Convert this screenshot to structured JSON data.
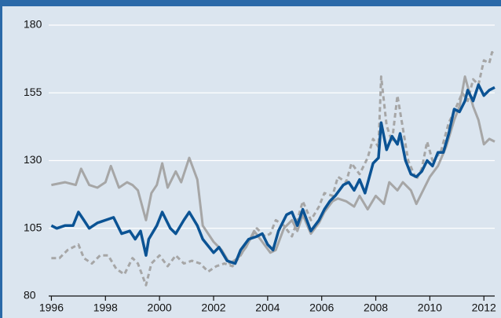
{
  "chart_data": {
    "type": "line",
    "xlim": [
      1995.9,
      2012.4
    ],
    "xticks": [
      1996,
      1998,
      2000,
      2002,
      2004,
      2006,
      2008,
      2010,
      2012
    ],
    "ylim": [
      80,
      180
    ],
    "yticks": [
      80,
      105,
      130,
      155,
      180
    ],
    "grid": true,
    "series": [
      {
        "color": "#a6a6a6",
        "dash": false,
        "x": [
          1996.0,
          1996.5,
          1996.9,
          1997.1,
          1997.4,
          1997.7,
          1998.0,
          1998.2,
          1998.5,
          1998.8,
          1999.0,
          1999.2,
          1999.5,
          1999.7,
          1999.9,
          2000.1,
          2000.3,
          2000.6,
          2000.8,
          2001.1,
          2001.4,
          2001.6,
          2002.0,
          2002.3,
          2002.6,
          2002.9,
          2003.2,
          2003.5,
          2003.8,
          2004.1,
          2004.3,
          2004.6,
          2004.9,
          2005.1,
          2005.3,
          2005.6,
          2005.9,
          2006.1,
          2006.4,
          2006.6,
          2006.9,
          2007.2,
          2007.4,
          2007.7,
          2008.0,
          2008.3,
          2008.5,
          2008.8,
          2009.0,
          2009.3,
          2009.5,
          2009.8,
          2010.0,
          2010.3,
          2010.6,
          2010.9,
          2011.1,
          2011.3,
          2011.6,
          2011.8,
          2012.0,
          2012.2,
          2012.4
        ],
        "values": [
          121,
          122,
          121,
          127,
          121,
          120,
          122,
          128,
          120,
          122,
          121,
          119,
          108,
          118,
          121,
          129,
          120,
          126,
          122,
          131,
          123,
          106,
          100,
          97,
          92,
          94,
          98,
          104,
          100,
          96,
          97,
          105,
          108,
          104,
          110,
          103,
          107,
          111,
          115,
          116,
          115,
          113,
          117,
          112,
          117,
          114,
          122,
          119,
          122,
          119,
          114,
          120,
          124,
          128,
          135,
          145,
          150,
          161,
          150,
          145,
          136,
          138,
          137
        ]
      },
      {
        "color": "#a6a6a6",
        "dash": true,
        "x": [
          1996.0,
          1996.3,
          1996.6,
          1997.0,
          1997.2,
          1997.5,
          1997.8,
          1998.1,
          1998.4,
          1998.7,
          1999.0,
          1999.2,
          1999.5,
          1999.7,
          2000.0,
          2000.3,
          2000.6,
          2000.9,
          2001.2,
          2001.5,
          2001.8,
          2002.1,
          2002.4,
          2002.7,
          2003.0,
          2003.3,
          2003.6,
          2003.9,
          2004.1,
          2004.3,
          2004.6,
          2004.9,
          2005.1,
          2005.3,
          2005.6,
          2005.9,
          2006.1,
          2006.4,
          2006.6,
          2006.9,
          2007.1,
          2007.4,
          2007.7,
          2007.9,
          2008.1,
          2008.2,
          2008.4,
          2008.6,
          2008.8,
          2009.0,
          2009.2,
          2009.5,
          2009.7,
          2009.9,
          2010.1,
          2010.4,
          2010.7,
          2010.9,
          2011.2,
          2011.4,
          2011.6,
          2011.8,
          2012.0,
          2012.2,
          2012.3,
          2012.4
        ],
        "values": [
          94,
          94,
          97,
          99,
          94,
          92,
          95,
          95,
          90,
          88,
          94,
          92,
          84,
          92,
          95,
          91,
          95,
          92,
          93,
          92,
          89,
          91,
          92,
          91,
          95,
          100,
          105,
          102,
          103,
          108,
          106,
          102,
          108,
          115,
          108,
          113,
          118,
          117,
          124,
          122,
          129,
          125,
          131,
          138,
          135,
          161,
          143,
          137,
          154,
          142,
          130,
          123,
          127,
          137,
          130,
          133,
          144,
          148,
          155,
          152,
          160,
          158,
          167,
          166,
          170,
          169
        ]
      },
      {
        "color": "#0b5394",
        "dash": false,
        "x": [
          1996.0,
          1996.2,
          1996.5,
          1996.8,
          1997.0,
          1997.2,
          1997.4,
          1997.7,
          1998.0,
          1998.3,
          1998.6,
          1998.9,
          1999.1,
          1999.3,
          1999.5,
          1999.6,
          1999.9,
          2000.1,
          2000.4,
          2000.6,
          2000.9,
          2001.1,
          2001.4,
          2001.6,
          2002.0,
          2002.2,
          2002.5,
          2002.8,
          2003.0,
          2003.3,
          2003.6,
          2003.8,
          2004.0,
          2004.2,
          2004.4,
          2004.7,
          2004.9,
          2005.1,
          2005.3,
          2005.6,
          2005.9,
          2006.1,
          2006.3,
          2006.5,
          2006.8,
          2007.0,
          2007.2,
          2007.4,
          2007.6,
          2007.9,
          2008.1,
          2008.2,
          2008.4,
          2008.6,
          2008.8,
          2008.9,
          2009.1,
          2009.3,
          2009.5,
          2009.7,
          2009.9,
          2010.1,
          2010.3,
          2010.5,
          2010.7,
          2010.9,
          2011.1,
          2011.3,
          2011.4,
          2011.6,
          2011.8,
          2012.0,
          2012.2,
          2012.4
        ],
        "values": [
          106,
          105,
          106,
          106,
          111,
          108,
          105,
          107,
          108,
          109,
          103,
          104,
          101,
          104,
          95,
          101,
          106,
          111,
          105,
          103,
          108,
          111,
          106,
          101,
          96,
          98,
          93,
          92,
          97,
          101,
          102,
          103,
          99,
          97,
          104,
          110,
          111,
          106,
          112,
          104,
          108,
          112,
          115,
          117,
          121,
          122,
          119,
          123,
          118,
          129,
          131,
          144,
          134,
          139,
          136,
          140,
          130,
          125,
          124,
          126,
          130,
          128,
          133,
          133,
          140,
          149,
          148,
          152,
          156,
          152,
          158,
          154,
          156,
          157
        ]
      }
    ]
  }
}
